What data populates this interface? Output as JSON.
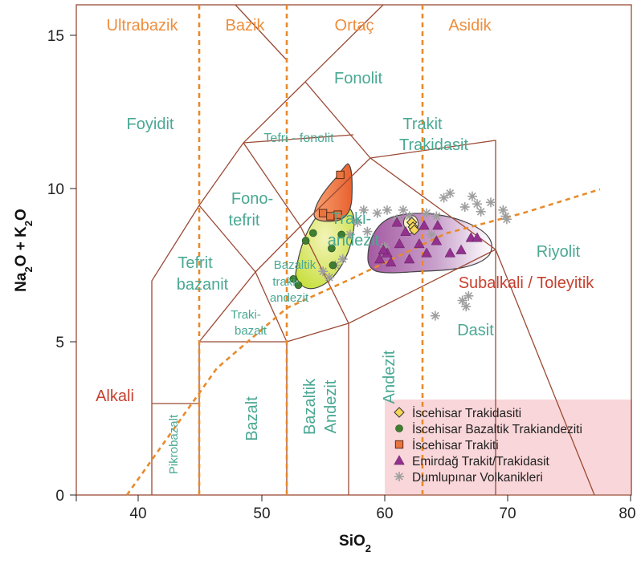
{
  "chart_data": {
    "type": "scatter",
    "xlabel": "SiO2",
    "ylabel": "Na2O + K2O",
    "xlim": [
      35,
      80
    ],
    "ylim": [
      0,
      16
    ],
    "x_ticks": [
      "40",
      "50",
      "60",
      "70",
      "80"
    ],
    "y_ticks": [
      "0",
      "5",
      "10",
      "15"
    ],
    "grid": false,
    "legend_position": "bottom-right",
    "rock_classes": [
      "Ultrabazik",
      "Bazik",
      "Ortaç",
      "Asidik"
    ],
    "series_labels": [
      "Alkali",
      "Subalkali / Toleyitik"
    ],
    "fields": [
      {
        "label": "Foyidit",
        "x": 41,
        "y": 12
      },
      {
        "label": "Fonolit",
        "x": 61,
        "y": 13.5
      },
      {
        "label": "Tefri - fonolit",
        "x": 53,
        "y": 11.7
      },
      {
        "label": "Trakit",
        "x": 63,
        "y": 12.2
      },
      {
        "label": "Trakidasit",
        "x": 63,
        "y": 11.5
      },
      {
        "label": "Fono-",
        "x": 49,
        "y": 9.7
      },
      {
        "label": "tefrit",
        "x": 49,
        "y": 9.0
      },
      {
        "label": "Traki-",
        "x": 56.6,
        "y": 9.0
      },
      {
        "label": "andezit",
        "x": 56.8,
        "y": 8.3
      },
      {
        "label": "Tefrit",
        "x": 45,
        "y": 7.6
      },
      {
        "label": "bazanit",
        "x": 45,
        "y": 6.8
      },
      {
        "label": "Bazaltik",
        "x": 52.6,
        "y": 7.6
      },
      {
        "label": "traki-",
        "x": 52.6,
        "y": 7.0
      },
      {
        "label": "andezit",
        "x": 52.6,
        "y": 6.4
      },
      {
        "label": "Traki-",
        "x": 49,
        "y": 5.8
      },
      {
        "label": "bazalt",
        "x": 49,
        "y": 5.3
      },
      {
        "label": "Riyolit",
        "x": 74.5,
        "y": 7.9
      },
      {
        "label": "Dasit",
        "x": 65,
        "y": 5.4
      },
      {
        "label": "Pikrobazalt",
        "x": 43,
        "y": 1.0
      },
      {
        "label": "Bazalt",
        "x": 49,
        "y": 2.2
      },
      {
        "label": "Bazaltik",
        "x": 55,
        "y": 2.2
      },
      {
        "label": "Andezit",
        "x": 56.5,
        "y": 2.2
      },
      {
        "label": "Andezit",
        "x": 61,
        "y": 2.7
      }
    ],
    "series": [
      {
        "name": "İscehisar Trakidasiti",
        "marker": "diamond",
        "color": "#f6d656",
        "points": [
          [
            62.2,
            8.9
          ],
          [
            62.3,
            8.75
          ],
          [
            62.4,
            8.65
          ]
        ]
      },
      {
        "name": "İscehisar Bazaltik Trakiandeziti",
        "marker": "circle",
        "color": "#3f7d32",
        "points": [
          [
            52.6,
            7.05
          ],
          [
            53.0,
            6.85
          ],
          [
            53.6,
            8.3
          ],
          [
            54.2,
            8.55
          ],
          [
            55.7,
            8.05
          ],
          [
            56.5,
            8.5
          ],
          [
            55.8,
            7.5
          ]
        ]
      },
      {
        "name": "İscehisar Trakiti",
        "marker": "square",
        "color": "#e8753f",
        "points": [
          [
            56.4,
            10.45
          ],
          [
            55.0,
            9.2
          ],
          [
            55.6,
            9.1
          ],
          [
            56.2,
            9.15
          ]
        ]
      },
      {
        "name": "Emirdağ Trakit/Trakidasit",
        "marker": "triangle",
        "color": "#93318e",
        "points": [
          [
            59.6,
            7.7
          ],
          [
            60.2,
            7.9
          ],
          [
            60.5,
            7.6
          ],
          [
            61.0,
            8.9
          ],
          [
            61.7,
            8.6
          ],
          [
            62.0,
            7.7
          ],
          [
            62.8,
            8.2
          ],
          [
            63.2,
            8.8
          ],
          [
            63.4,
            7.9
          ],
          [
            64.2,
            8.3
          ],
          [
            64.3,
            8.8
          ],
          [
            65.3,
            7.9
          ],
          [
            66.2,
            8.0
          ],
          [
            67.0,
            8.4
          ],
          [
            67.5,
            8.4
          ],
          [
            61.2,
            8.2
          ],
          [
            59.9,
            8.0
          ]
        ]
      },
      {
        "name": "Dumlupınar Volkanikleri",
        "marker": "asterisk",
        "color": "#9e9e9e",
        "points": [
          [
            55.0,
            7.3
          ],
          [
            55.5,
            7.1
          ],
          [
            56.0,
            7.5
          ],
          [
            56.6,
            7.7
          ],
          [
            57.2,
            8.5
          ],
          [
            57.8,
            8.9
          ],
          [
            58.3,
            9.3
          ],
          [
            58.6,
            8.6
          ],
          [
            59.4,
            9.2
          ],
          [
            60.0,
            8.1
          ],
          [
            60.2,
            9.3
          ],
          [
            61.0,
            9.0
          ],
          [
            61.5,
            9.3
          ],
          [
            62.0,
            9.1
          ],
          [
            63.4,
            9.2
          ],
          [
            63.8,
            8.5
          ],
          [
            64.2,
            9.1
          ],
          [
            64.8,
            9.7
          ],
          [
            65.3,
            9.85
          ],
          [
            66.5,
            9.4
          ],
          [
            67.1,
            9.75
          ],
          [
            67.5,
            9.5
          ],
          [
            67.8,
            9.25
          ],
          [
            68.6,
            9.55
          ],
          [
            69.6,
            9.3
          ],
          [
            69.8,
            9.1
          ],
          [
            69.9,
            9.0
          ],
          [
            64.1,
            5.85
          ],
          [
            66.3,
            6.35
          ],
          [
            66.6,
            6.15
          ],
          [
            66.8,
            6.5
          ]
        ]
      }
    ]
  }
}
